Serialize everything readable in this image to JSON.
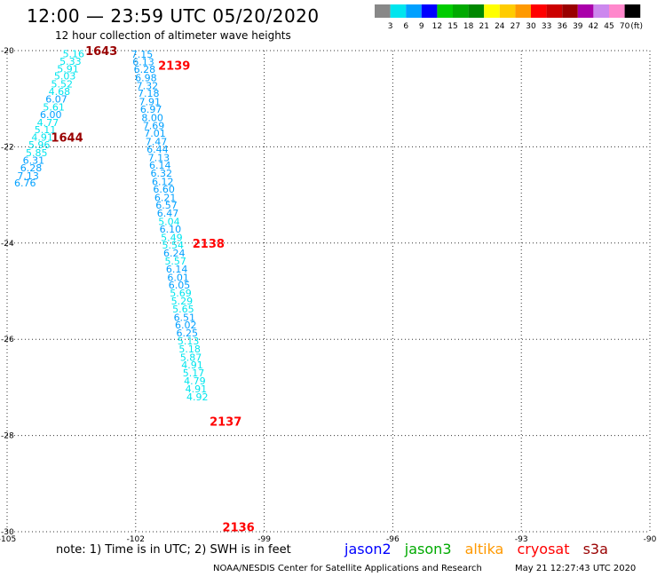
{
  "header": {
    "title": "12:00 — 23:59 UTC 05/20/2020",
    "subtitle": "12 hour collection of altimeter wave heights"
  },
  "color_scale": {
    "labels": [
      "3",
      "6",
      "9",
      "12",
      "15",
      "18",
      "21",
      "24",
      "27",
      "30",
      "33",
      "36",
      "39",
      "42",
      "45",
      "70"
    ],
    "unit": "(ft)",
    "colors": [
      "#888888",
      "#00e5ee",
      "#00a0ff",
      "#0000ff",
      "#00cc00",
      "#00aa00",
      "#008800",
      "#ffff00",
      "#ffcc00",
      "#ff9900",
      "#ff0000",
      "#cc0000",
      "#990000",
      "#aa00aa",
      "#cc88ee",
      "#ff88cc",
      "#000000"
    ]
  },
  "note": "note:  1) Time is in UTC;  2) SWH is in feet",
  "satellites": [
    {
      "name": "jason2",
      "color": "#0000ff"
    },
    {
      "name": "jason3",
      "color": "#00aa00"
    },
    {
      "name": "altika",
      "color": "#ff9900"
    },
    {
      "name": "cryosat",
      "color": "#ff0000"
    },
    {
      "name": "s3a",
      "color": "#990000"
    }
  ],
  "footer": {
    "org": "NOAA/NESDIS Center for Satellite Applications and Research",
    "timestamp": "May 21 12:27:43 UTC 2020"
  },
  "chart_data": {
    "type": "scatter",
    "xlim": [
      -105,
      -90
    ],
    "ylim": [
      -30,
      -20
    ],
    "x_ticks": [
      -105,
      -102,
      -99,
      -96,
      -93,
      -90
    ],
    "y_ticks": [
      -20,
      -22,
      -24,
      -26,
      -28,
      -30
    ],
    "grid": true,
    "track_colors": {
      "s3a": "#990000",
      "cryosat": "#ff0000",
      "low": "#00e5ee",
      "mid": "#00a0ff"
    },
    "tracks": [
      {
        "satellite": "s3a",
        "time_labels": [
          {
            "label": "1643",
            "lon": -102.8,
            "lat": -20.0
          },
          {
            "label": "1644",
            "lon": -103.6,
            "lat": -21.8
          }
        ],
        "points": [
          {
            "lon": -103.45,
            "lat": -20.06,
            "swh": "5.16"
          },
          {
            "lon": -103.52,
            "lat": -20.22,
            "swh": "5.33"
          },
          {
            "lon": -103.58,
            "lat": -20.38,
            "swh": "5.91"
          },
          {
            "lon": -103.65,
            "lat": -20.53,
            "swh": "5.03"
          },
          {
            "lon": -103.72,
            "lat": -20.69,
            "swh": "5.52"
          },
          {
            "lon": -103.78,
            "lat": -20.85,
            "swh": "4.68"
          },
          {
            "lon": -103.85,
            "lat": -21.01,
            "swh": "6.07"
          },
          {
            "lon": -103.91,
            "lat": -21.17,
            "swh": "5.61"
          },
          {
            "lon": -103.98,
            "lat": -21.33,
            "swh": "6.00"
          },
          {
            "lon": -104.05,
            "lat": -21.49,
            "swh": "4.77"
          },
          {
            "lon": -104.11,
            "lat": -21.64,
            "swh": "5.11"
          },
          {
            "lon": -104.18,
            "lat": -21.8,
            "swh": "4.91"
          },
          {
            "lon": -104.25,
            "lat": -21.96,
            "swh": "5.96"
          },
          {
            "lon": -104.31,
            "lat": -22.12,
            "swh": "5.85"
          },
          {
            "lon": -104.38,
            "lat": -22.28,
            "swh": "6.31"
          },
          {
            "lon": -104.44,
            "lat": -22.44,
            "swh": "6.28"
          },
          {
            "lon": -104.51,
            "lat": -22.6,
            "swh": "7.13"
          },
          {
            "lon": -104.58,
            "lat": -22.75,
            "swh": "6.76"
          }
        ]
      },
      {
        "satellite": "cryosat",
        "time_labels": [
          {
            "label": "2139",
            "lon": -101.1,
            "lat": -20.3
          },
          {
            "label": "2138",
            "lon": -100.3,
            "lat": -24.0
          },
          {
            "label": "2137",
            "lon": -99.9,
            "lat": -27.7
          },
          {
            "label": "2136",
            "lon": -99.6,
            "lat": -29.9
          }
        ],
        "points": [
          {
            "lon": -101.85,
            "lat": -20.07,
            "swh": "7.15"
          },
          {
            "lon": -101.82,
            "lat": -20.23,
            "swh": "6.13"
          },
          {
            "lon": -101.79,
            "lat": -20.39,
            "swh": "6.28"
          },
          {
            "lon": -101.76,
            "lat": -20.56,
            "swh": "6.98"
          },
          {
            "lon": -101.73,
            "lat": -20.73,
            "swh": "7.32"
          },
          {
            "lon": -101.7,
            "lat": -20.89,
            "swh": "7.18"
          },
          {
            "lon": -101.67,
            "lat": -21.06,
            "swh": "7.91"
          },
          {
            "lon": -101.64,
            "lat": -21.22,
            "swh": "6.97"
          },
          {
            "lon": -101.61,
            "lat": -21.39,
            "swh": "8.00"
          },
          {
            "lon": -101.58,
            "lat": -21.56,
            "swh": "7.69"
          },
          {
            "lon": -101.55,
            "lat": -21.72,
            "swh": "7.01"
          },
          {
            "lon": -101.52,
            "lat": -21.89,
            "swh": "7.47"
          },
          {
            "lon": -101.49,
            "lat": -22.05,
            "swh": "6.44"
          },
          {
            "lon": -101.46,
            "lat": -22.22,
            "swh": "7.13"
          },
          {
            "lon": -101.43,
            "lat": -22.38,
            "swh": "6.14"
          },
          {
            "lon": -101.4,
            "lat": -22.55,
            "swh": "6.32"
          },
          {
            "lon": -101.37,
            "lat": -22.72,
            "swh": "6.12"
          },
          {
            "lon": -101.34,
            "lat": -22.88,
            "swh": "6.60"
          },
          {
            "lon": -101.31,
            "lat": -23.05,
            "swh": "6.21"
          },
          {
            "lon": -101.28,
            "lat": -23.21,
            "swh": "6.57"
          },
          {
            "lon": -101.25,
            "lat": -23.38,
            "swh": "6.47"
          },
          {
            "lon": -101.22,
            "lat": -23.55,
            "swh": "5.04"
          },
          {
            "lon": -101.19,
            "lat": -23.71,
            "swh": "6.10"
          },
          {
            "lon": -101.16,
            "lat": -23.88,
            "swh": "5.49"
          },
          {
            "lon": -101.13,
            "lat": -24.04,
            "swh": "5.54"
          },
          {
            "lon": -101.1,
            "lat": -24.21,
            "swh": "6.24"
          },
          {
            "lon": -101.07,
            "lat": -24.37,
            "swh": "5.57"
          },
          {
            "lon": -101.04,
            "lat": -24.54,
            "swh": "6.14"
          },
          {
            "lon": -101.01,
            "lat": -24.71,
            "swh": "6.01"
          },
          {
            "lon": -100.98,
            "lat": -24.87,
            "swh": "6.05"
          },
          {
            "lon": -100.95,
            "lat": -25.04,
            "swh": "5.69"
          },
          {
            "lon": -100.92,
            "lat": -25.2,
            "swh": "5.29"
          },
          {
            "lon": -100.89,
            "lat": -25.37,
            "swh": "5.65"
          },
          {
            "lon": -100.86,
            "lat": -25.54,
            "swh": "6.51"
          },
          {
            "lon": -100.83,
            "lat": -25.7,
            "swh": "6.02"
          },
          {
            "lon": -100.8,
            "lat": -25.87,
            "swh": "6.25"
          },
          {
            "lon": -100.77,
            "lat": -26.03,
            "swh": "5.13"
          },
          {
            "lon": -100.74,
            "lat": -26.2,
            "swh": "5.18"
          },
          {
            "lon": -100.71,
            "lat": -26.37,
            "swh": "5.87"
          },
          {
            "lon": -100.68,
            "lat": -26.53,
            "swh": "4.91"
          },
          {
            "lon": -100.65,
            "lat": -26.7,
            "swh": "5.17"
          },
          {
            "lon": -100.62,
            "lat": -26.86,
            "swh": "4.79"
          },
          {
            "lon": -100.59,
            "lat": -27.03,
            "swh": "4.91"
          },
          {
            "lon": -100.56,
            "lat": -27.2,
            "swh": "4.92"
          }
        ]
      }
    ]
  }
}
